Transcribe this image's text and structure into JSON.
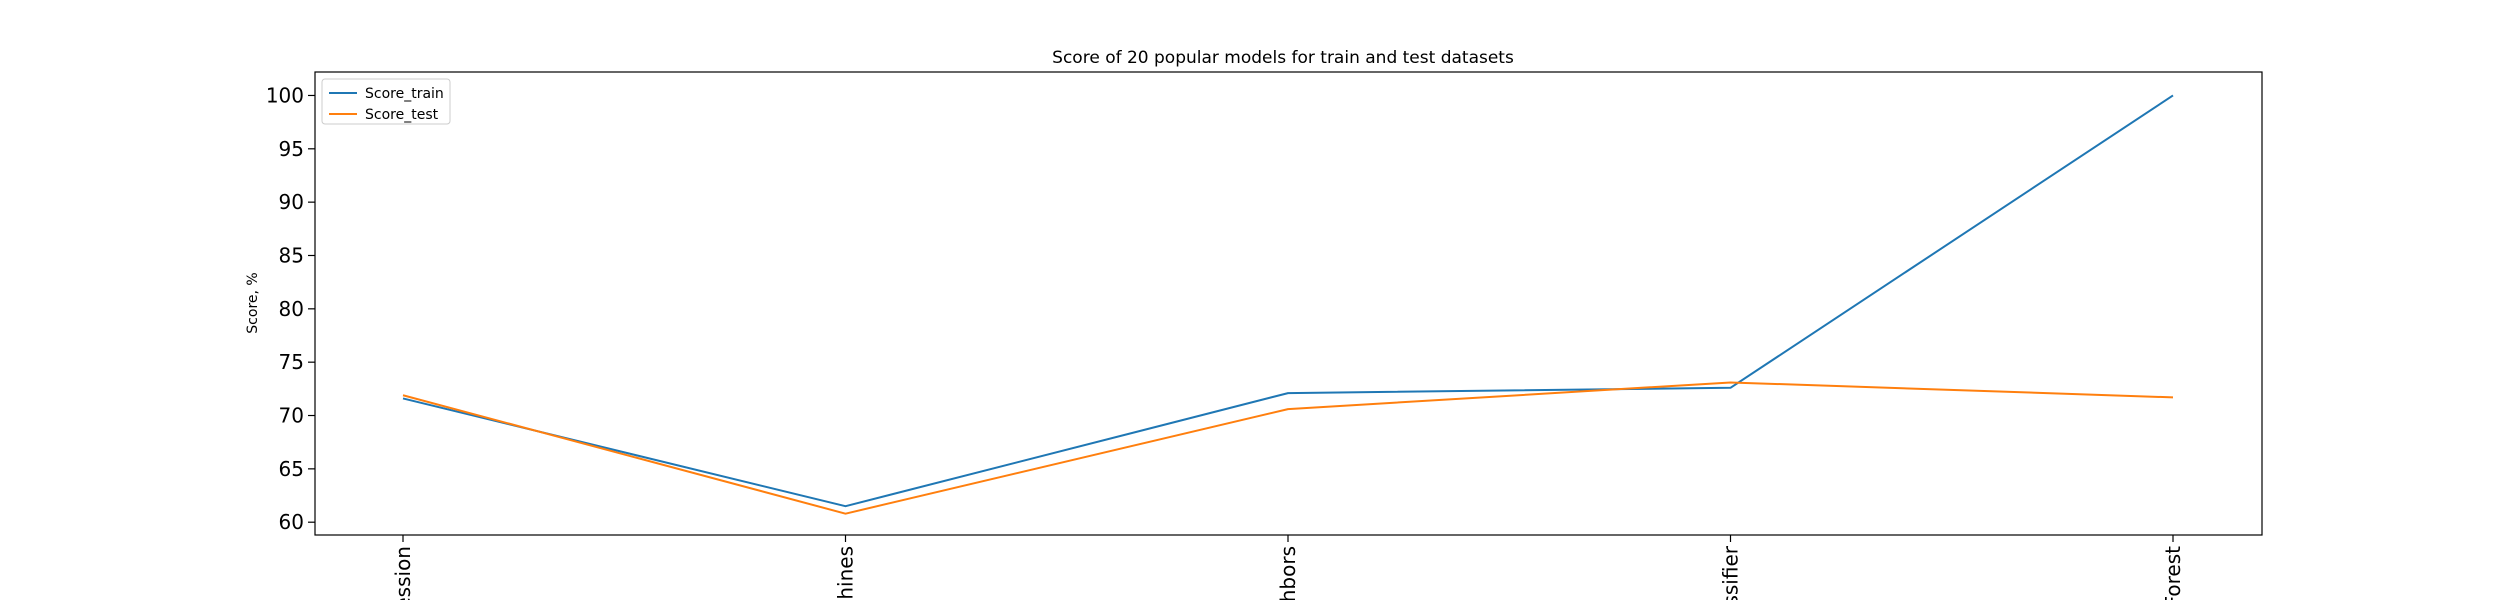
{
  "chart_data": {
    "type": "line",
    "title": "Score of 20 popular models for train and test datasets",
    "xlabel": "",
    "ylabel": "Score, %",
    "categories": [
      "ession",
      "chines",
      "hbors",
      "ssifier",
      "Forest"
    ],
    "ylim": [
      58.8,
      102.2
    ],
    "yticks": [
      60,
      65,
      70,
      75,
      80,
      85,
      90,
      95,
      100
    ],
    "grid": false,
    "legend_position": "top-left",
    "series": [
      {
        "name": "Score_train",
        "color": "#1f77b4",
        "values": [
          71.6,
          61.5,
          72.1,
          72.6,
          100.0
        ]
      },
      {
        "name": "Score_test",
        "color": "#ff7f0e",
        "values": [
          71.9,
          60.8,
          70.6,
          73.1,
          71.7
        ]
      }
    ]
  }
}
